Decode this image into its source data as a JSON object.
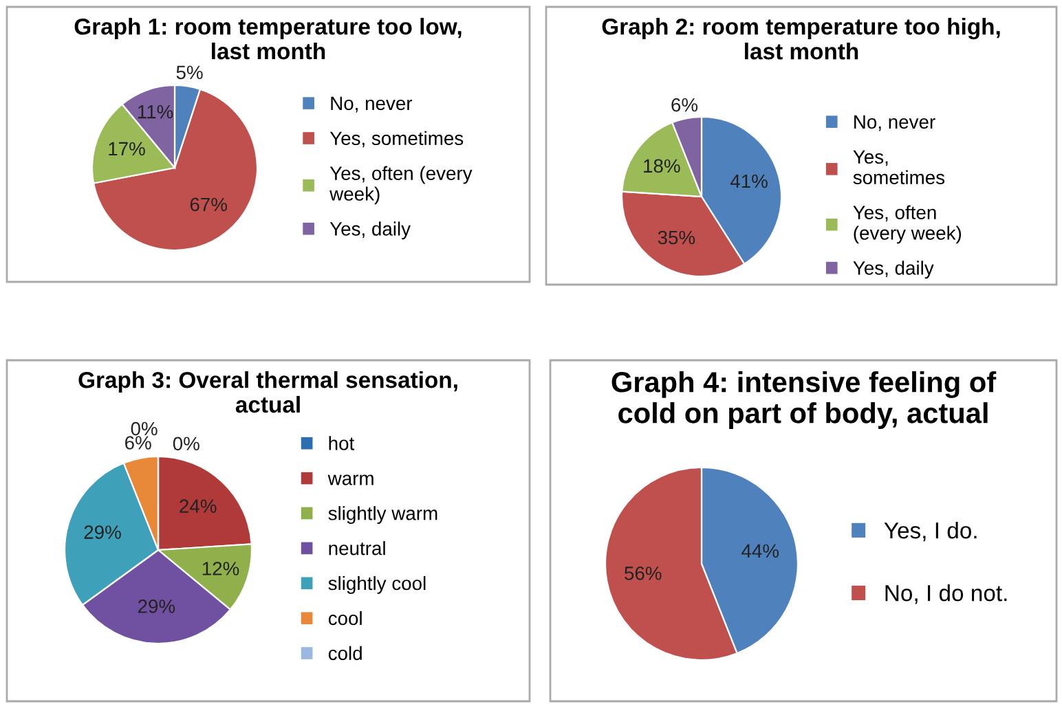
{
  "chart_data": [
    {
      "type": "pie",
      "title": "Graph 1: room temperature too low,\nlast month",
      "categories": [
        "No, never",
        "Yes, sometimes",
        "Yes, often (every\nweek)",
        "Yes, daily"
      ],
      "values": [
        5,
        67,
        17,
        11
      ],
      "value_labels": [
        "5%",
        "67%",
        "17%",
        "11%"
      ],
      "colors": [
        "#4f81bd",
        "#c0504d",
        "#9bbb59",
        "#8064a2"
      ],
      "legend": "right"
    },
    {
      "type": "pie",
      "title": "Graph 2: room temperature too high,\nlast month",
      "categories": [
        "No, never",
        "Yes,\nsometimes",
        "Yes, often\n(every week)",
        "Yes, daily"
      ],
      "values": [
        41,
        35,
        18,
        6
      ],
      "value_labels": [
        "41%",
        "35%",
        "18%",
        "6%"
      ],
      "colors": [
        "#4f81bd",
        "#c0504d",
        "#9bbb59",
        "#8064a2"
      ],
      "legend": "right"
    },
    {
      "type": "pie",
      "title": "Graph 3: Overal thermal sensation,\nactual",
      "categories": [
        "hot",
        "warm",
        "slightly warm",
        "neutral",
        "slightly cool",
        "cool",
        "cold"
      ],
      "values": [
        0,
        24,
        12,
        29,
        29,
        6,
        0
      ],
      "value_labels": [
        "0%",
        "24%",
        "12%",
        "29%",
        "29%",
        "6%",
        "0%"
      ],
      "colors": [
        "#2c6fb0",
        "#b03a3a",
        "#8fb04a",
        "#7050a0",
        "#3fa0ba",
        "#e8893a",
        "#9bb8e0"
      ],
      "legend": "right"
    },
    {
      "type": "pie",
      "title": "Graph 4: intensive feeling of\ncold on part of body, actual",
      "categories": [
        "Yes, I do.",
        "No, I do not."
      ],
      "values": [
        44,
        56
      ],
      "value_labels": [
        "44%",
        "56%"
      ],
      "colors": [
        "#4f81bd",
        "#c0504d"
      ],
      "legend": "right"
    }
  ]
}
